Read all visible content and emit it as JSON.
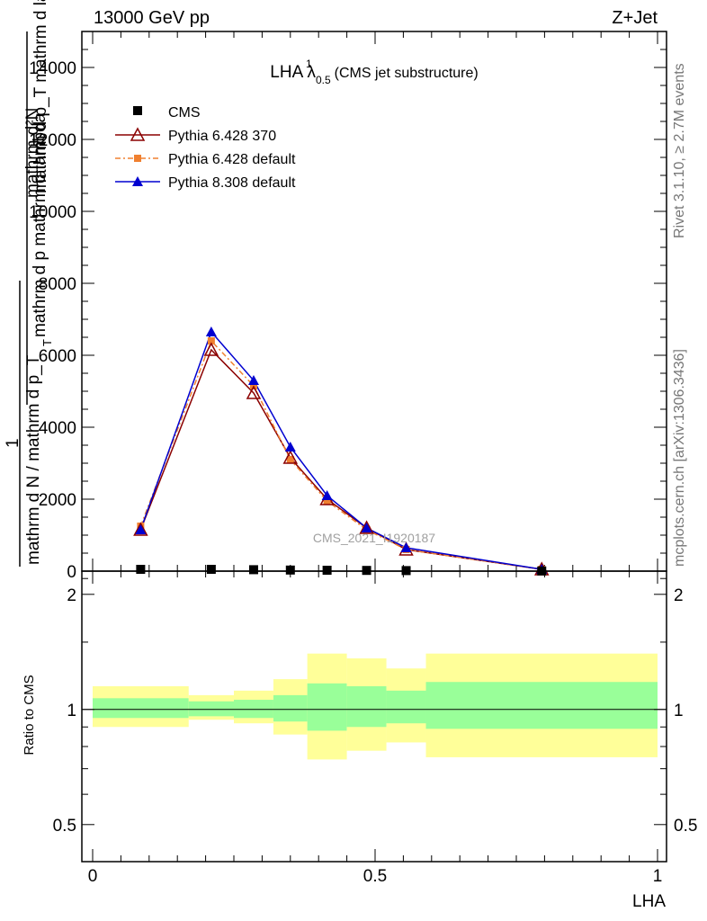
{
  "header": {
    "energy_label": "13000 GeV pp",
    "process_label": "Z+Jet"
  },
  "side_labels": {
    "rivet": "Rivet 3.1.10, ≥ 2.7M events",
    "mcplots": "mcplots.cern.ch [arXiv:1306.3436]"
  },
  "watermark": "CMS_2021_I1920187",
  "colors": {
    "cms": "#000000",
    "pythia6_370": "#8b0000",
    "pythia6_default": "#f08030",
    "pythia8_default": "#0000d0",
    "band_inner": "#99ff99",
    "band_outer": "#ffff99"
  },
  "chart_data": [
    {
      "type": "line",
      "title_main": "LHA λ",
      "title_sup": "1",
      "title_sub": "0.5",
      "title_suffix": "(CMS jet substructure)",
      "ylabel_numerator": "mathrm d²N",
      "ylabel_denominator": "mathrm d p_T mathrm d lambda",
      "ylabel_prefix_num": "1",
      "ylabel_prefix_den": "mathrm d N / mathrm d p_T",
      "ylabel_alt": "mathrm d p mathrm d lambda",
      "ylabel_sub": "T",
      "xlim": [
        0,
        1
      ],
      "ylim": [
        0,
        15000
      ],
      "yticks": [
        0,
        2000,
        4000,
        6000,
        8000,
        10000,
        12000,
        14000
      ],
      "ytick_labels": [
        "0",
        "2000",
        "4000",
        "6000",
        "8000",
        "10000",
        "12000",
        "14000"
      ],
      "legend_position": "top-left",
      "series": [
        {
          "name": "CMS",
          "marker": "square",
          "x": [
            0.085,
            0.21,
            0.285,
            0.35,
            0.415,
            0.485,
            0.555,
            0.795
          ],
          "values": [
            50,
            50,
            40,
            30,
            25,
            20,
            15,
            5
          ]
        },
        {
          "name": "Pythia 6.428 370",
          "marker": "open-triangle",
          "x": [
            0.085,
            0.21,
            0.285,
            0.35,
            0.415,
            0.485,
            0.555,
            0.795
          ],
          "values": [
            1150,
            6150,
            4950,
            3150,
            2000,
            1200,
            600,
            50
          ]
        },
        {
          "name": "Pythia 6.428 default",
          "marker": "filled-square",
          "x": [
            0.085,
            0.21,
            0.285,
            0.35,
            0.415,
            0.485,
            0.555,
            0.795
          ],
          "values": [
            1250,
            6400,
            5150,
            3100,
            1950,
            1150,
            600,
            50
          ]
        },
        {
          "name": "Pythia 8.308 default",
          "marker": "filled-triangle",
          "x": [
            0.085,
            0.21,
            0.285,
            0.35,
            0.415,
            0.485,
            0.555,
            0.795
          ],
          "values": [
            1150,
            6650,
            5300,
            3450,
            2100,
            1200,
            650,
            50
          ]
        }
      ]
    },
    {
      "type": "area",
      "ylabel": "Ratio to CMS",
      "xlabel": "LHA",
      "xlim": [
        0,
        1
      ],
      "ylim": [
        0.4,
        2.3
      ],
      "log_y": true,
      "xticks": [
        0,
        0.5,
        1
      ],
      "xtick_labels": [
        "0",
        "0.5",
        "1"
      ],
      "yticks": [
        0.5,
        1,
        2
      ],
      "ytick_labels": [
        "0.5",
        "1",
        "2"
      ],
      "reference_line": 1,
      "bins": [
        {
          "x0": 0.0,
          "x1": 0.17,
          "inner": [
            0.95,
            1.07
          ],
          "outer": [
            0.9,
            1.15
          ]
        },
        {
          "x0": 0.17,
          "x1": 0.25,
          "inner": [
            0.96,
            1.05
          ],
          "outer": [
            0.94,
            1.09
          ]
        },
        {
          "x0": 0.25,
          "x1": 0.32,
          "inner": [
            0.95,
            1.06
          ],
          "outer": [
            0.92,
            1.12
          ]
        },
        {
          "x0": 0.32,
          "x1": 0.38,
          "inner": [
            0.93,
            1.09
          ],
          "outer": [
            0.86,
            1.2
          ]
        },
        {
          "x0": 0.38,
          "x1": 0.45,
          "inner": [
            0.88,
            1.17
          ],
          "outer": [
            0.74,
            1.4
          ]
        },
        {
          "x0": 0.45,
          "x1": 0.52,
          "inner": [
            0.9,
            1.15
          ],
          "outer": [
            0.78,
            1.36
          ]
        },
        {
          "x0": 0.52,
          "x1": 0.59,
          "inner": [
            0.92,
            1.12
          ],
          "outer": [
            0.82,
            1.28
          ]
        },
        {
          "x0": 0.59,
          "x1": 1.0,
          "inner": [
            0.89,
            1.18
          ],
          "outer": [
            0.75,
            1.4
          ]
        }
      ]
    }
  ]
}
